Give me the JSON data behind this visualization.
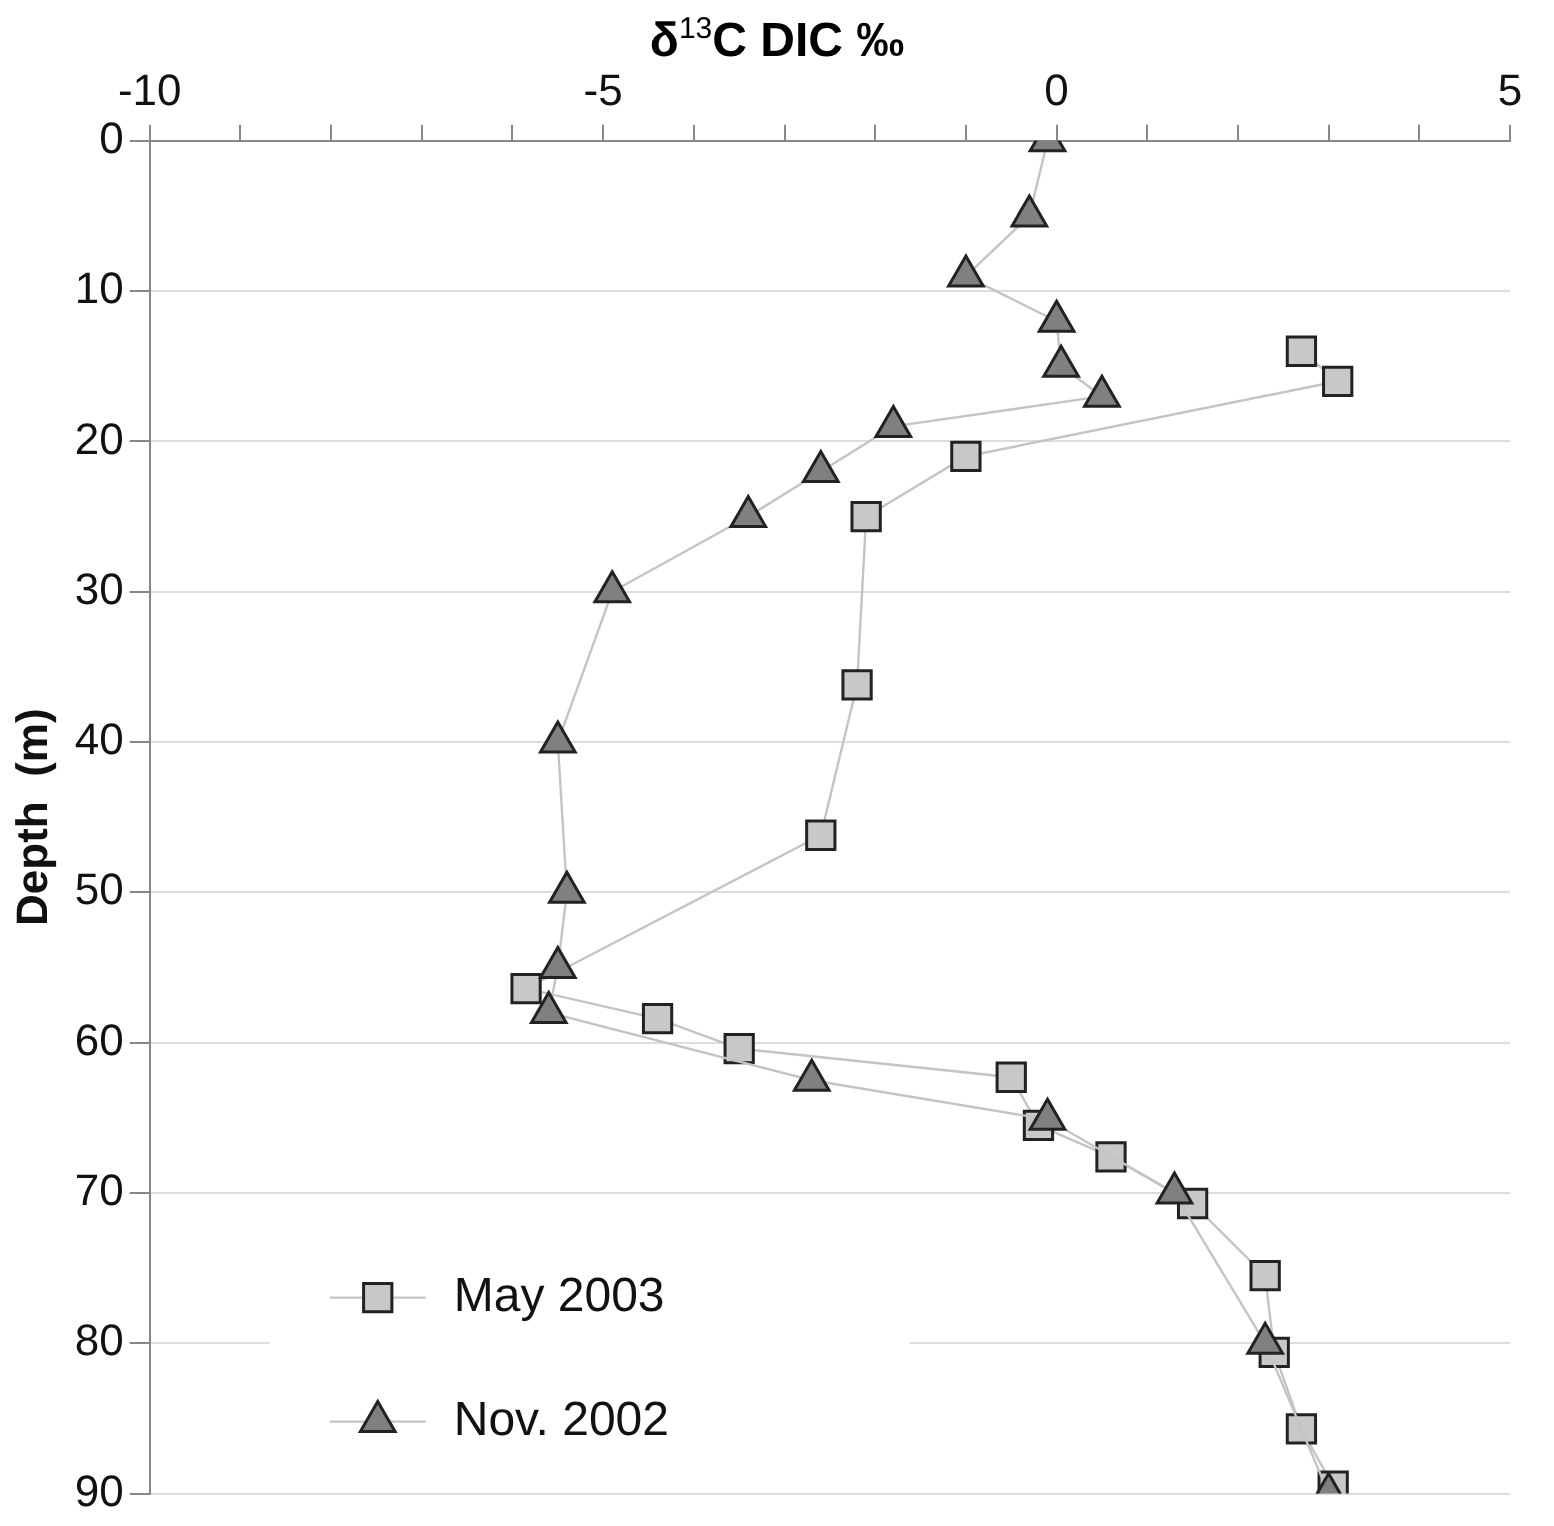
{
  "chart_data": {
    "type": "line",
    "xlabel": "δ$^{13}$C DIC ‰",
    "ylabel": "Depth  (m)",
    "xlim": [
      -10,
      5
    ],
    "xticks": [
      -10,
      {
        "value": -9,
        "label": null
      },
      {
        "value": -8,
        "label": null
      },
      {
        "value": -7,
        "label": null
      },
      {
        "value": -6,
        "label": null
      },
      -5,
      {
        "value": -4,
        "label": null
      },
      {
        "value": -3,
        "label": null
      },
      {
        "value": -2,
        "label": null
      },
      {
        "value": -1,
        "label": null
      },
      0,
      {
        "value": 1,
        "label": null
      },
      {
        "value": 2,
        "label": null
      },
      {
        "value": 3,
        "label": null
      },
      {
        "value": 4,
        "label": null
      },
      5
    ],
    "ylim": [
      90,
      0
    ],
    "yticks": [
      0,
      10,
      20,
      30,
      40,
      50,
      60,
      70,
      80,
      90
    ],
    "grid": "y",
    "legend": "bottom left",
    "series": [
      {
        "name": "May 2003",
        "color": "#c8c8c8",
        "marker": "square",
        "x": [
          2.7,
          3.1,
          -1.0,
          -2.1,
          -2.2,
          -2.6,
          -5.85,
          -4.4,
          -3.5,
          -0.5,
          -0.2,
          0.6,
          1.5,
          2.3,
          2.4,
          2.7,
          3.05
        ],
        "values": [
          14,
          16,
          21,
          25,
          36.2,
          46.2,
          56.4,
          58.4,
          60.4,
          62.3,
          65.5,
          67.6,
          70.7,
          75.5,
          80.6,
          85.7,
          89.5
        ]
      },
      {
        "name": "Nov. 2002",
        "color": "#808080",
        "marker": "triangle",
        "x": [
          -0.1,
          -0.3,
          -1.0,
          0.0,
          0.05,
          0.5,
          -1.8,
          -2.6,
          -3.4,
          -4.9,
          -5.5,
          -5.4,
          -5.5,
          -5.6,
          -2.7,
          -0.1,
          1.3,
          2.3,
          3.0
        ],
        "values": [
          0,
          5,
          9,
          12,
          15,
          17,
          19,
          22,
          25,
          30,
          40,
          50,
          55,
          58,
          62.5,
          65.1,
          70,
          80,
          90
        ]
      }
    ]
  }
}
